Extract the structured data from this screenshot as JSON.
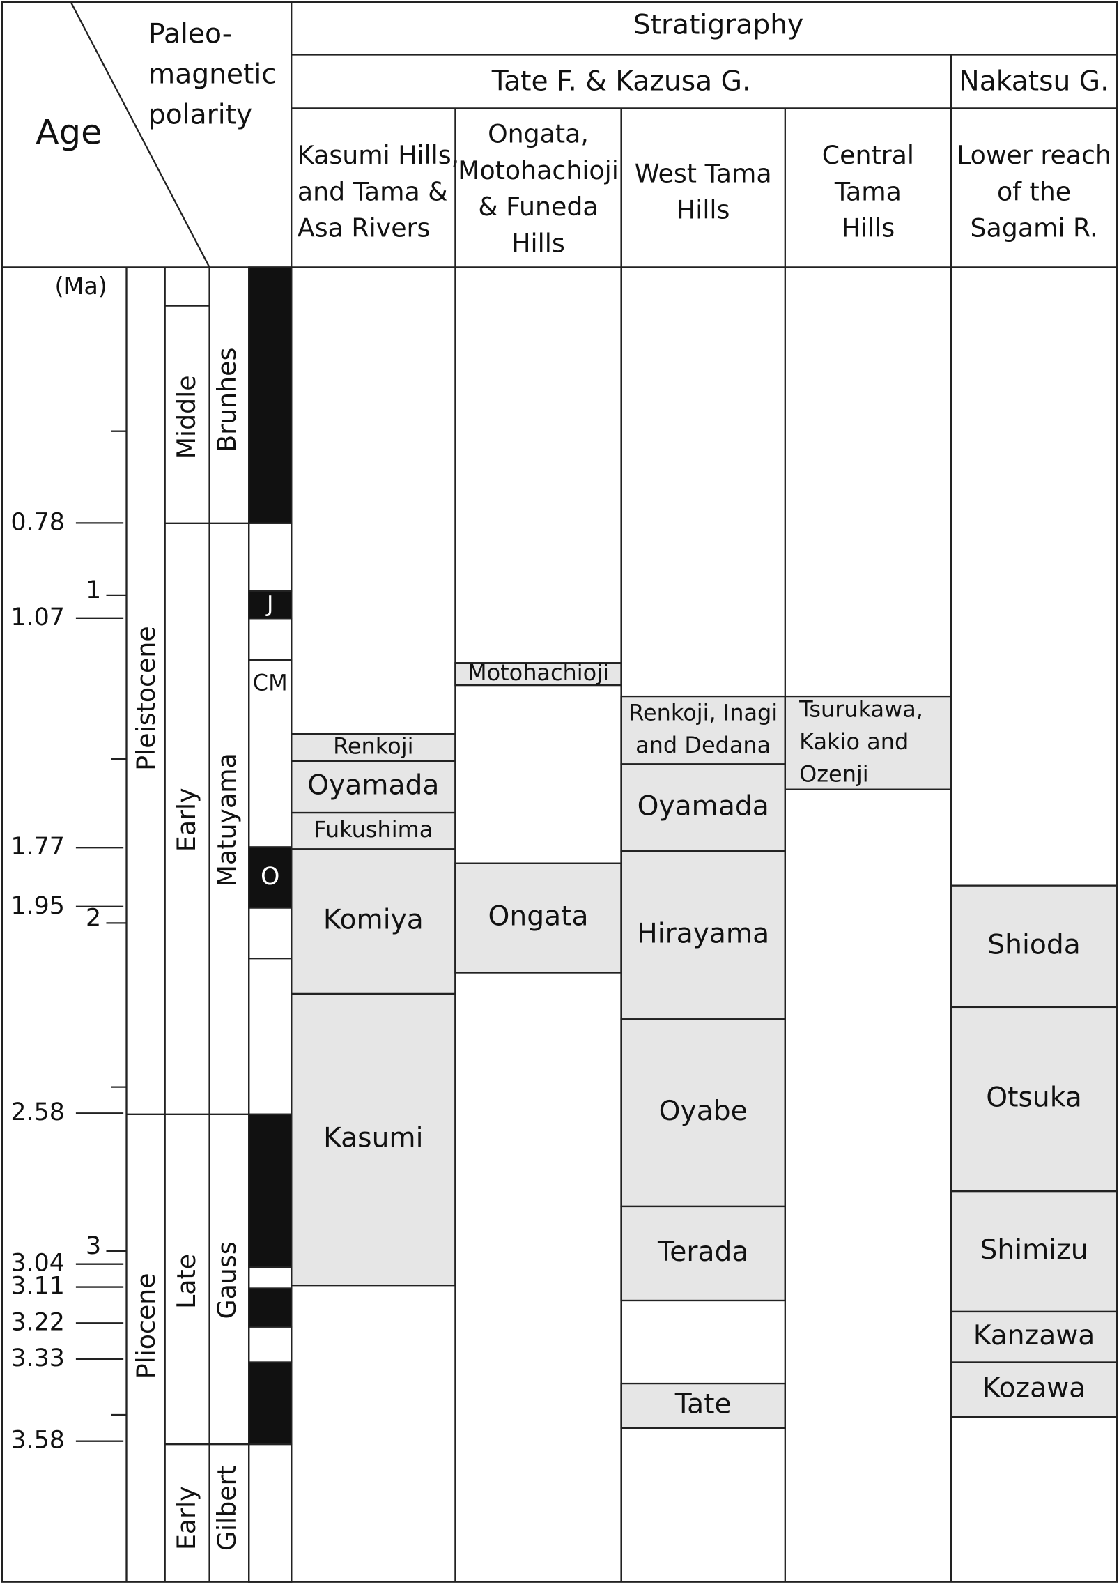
{
  "header": {
    "age": "Age",
    "polarity": [
      "Paleo-",
      "magnetic",
      "polarity"
    ],
    "stratigraphy": "Stratigraphy",
    "groups": [
      "Tate F. & Kazusa G.",
      "Nakatsu G."
    ]
  },
  "unit": "(Ma)",
  "age_labels": [
    0.78,
    1.07,
    1.77,
    1.95,
    2.58,
    3.04,
    3.11,
    3.22,
    3.33,
    3.58
  ],
  "major_ticks": [
    1,
    2,
    3
  ],
  "epochs": [
    "Pleistocene",
    "Pliocene"
  ],
  "stages": [
    "Middle",
    "Early",
    "Late",
    "Early"
  ],
  "chrons": [
    "Brunhes",
    "Matuyama",
    "Gauss",
    "Gilbert"
  ],
  "subchrons": [
    "J",
    "CM",
    "O"
  ],
  "columns": [
    {
      "title": [
        "Kasumi Hills,",
        "and Tama &",
        "Asa Rivers"
      ],
      "formations": [
        {
          "lines": [
            "Renkoji"
          ]
        },
        {
          "lines": [
            "Oyamada"
          ]
        },
        {
          "lines": [
            "Fukushima"
          ]
        },
        {
          "lines": [
            "Komiya"
          ]
        },
        {
          "lines": [
            "Kasumi"
          ]
        }
      ]
    },
    {
      "title": [
        "Ongata,",
        "Motohachioji",
        "& Funeda",
        "Hills"
      ],
      "formations": [
        {
          "lines": [
            "Motohachioji"
          ]
        },
        {
          "lines": [
            "Ongata"
          ]
        }
      ]
    },
    {
      "title": [
        "West Tama",
        "Hills"
      ],
      "formations": [
        {
          "lines": [
            "Renkoji, Inagi",
            "and Dedana"
          ]
        },
        {
          "lines": [
            "Oyamada"
          ]
        },
        {
          "lines": [
            "Hirayama"
          ]
        },
        {
          "lines": [
            "Oyabe"
          ]
        },
        {
          "lines": [
            "Terada"
          ]
        },
        {
          "lines": [
            "Tate"
          ]
        }
      ]
    },
    {
      "title": [
        "Central",
        "Tama",
        "Hills"
      ],
      "formations": [
        {
          "lines": [
            "Tsurukawa,",
            "Kakio and",
            "Ozenji"
          ]
        }
      ]
    },
    {
      "title": [
        "Lower reach",
        "of the",
        "Sagami R."
      ],
      "formations": [
        {
          "lines": [
            "Shioda"
          ]
        },
        {
          "lines": [
            "Otsuka"
          ]
        },
        {
          "lines": [
            "Shimizu"
          ]
        },
        {
          "lines": [
            "Kanzawa"
          ]
        },
        {
          "lines": [
            "Kozawa"
          ]
        }
      ]
    }
  ]
}
